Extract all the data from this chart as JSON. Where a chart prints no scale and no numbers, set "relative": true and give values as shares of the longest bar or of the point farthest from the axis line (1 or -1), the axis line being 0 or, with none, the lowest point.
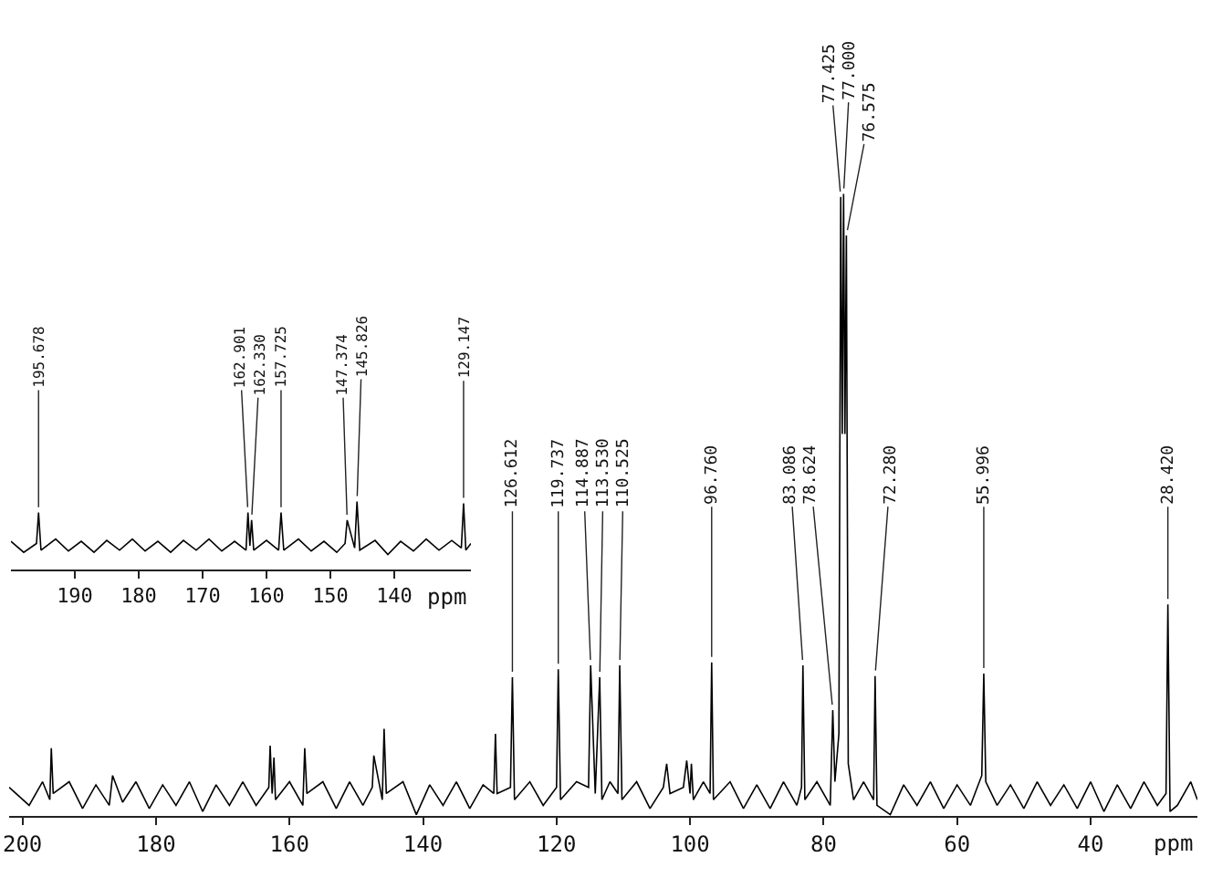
{
  "chart_data": [
    {
      "type": "line",
      "xlabel": "ppm",
      "relative": true,
      "color": "#000000",
      "xlim": [
        202,
        24
      ],
      "xticks": [
        200,
        180,
        160,
        140,
        120,
        100,
        80,
        60,
        40
      ],
      "x": [
        202,
        199,
        197,
        195.9,
        195.68,
        195.4,
        193,
        191,
        189,
        187,
        186.5,
        185,
        183,
        181,
        179,
        177,
        175,
        173,
        171,
        169,
        167,
        165,
        163.1,
        162.9,
        162.6,
        162.33,
        162.1,
        160,
        158,
        157.72,
        157.4,
        155,
        153,
        151,
        149,
        147.6,
        147.37,
        146.1,
        145.83,
        145.5,
        143,
        141,
        139,
        137,
        135,
        133,
        131,
        129.4,
        129.15,
        128.9,
        126.9,
        126.61,
        126.3,
        124,
        122,
        120,
        119.74,
        119.4,
        117,
        115.2,
        114.89,
        114.2,
        113.53,
        113.2,
        112,
        110.8,
        110.53,
        110.2,
        108,
        106,
        104,
        103.5,
        103,
        101,
        100.5,
        100,
        99.8,
        99.5,
        98,
        97,
        96.76,
        96.5,
        94,
        92,
        90,
        88,
        86,
        84,
        83.3,
        83.09,
        82.8,
        81,
        79,
        78.62,
        78.3,
        77.7,
        77.43,
        77.2,
        77.0,
        76.8,
        76.58,
        76.3,
        75.5,
        74,
        72.5,
        72.28,
        72,
        70,
        68,
        66,
        64,
        62,
        60,
        58,
        56.3,
        56.0,
        55.7,
        54,
        52,
        50,
        48,
        46,
        44,
        42,
        40,
        38,
        36,
        34,
        32,
        30,
        28.7,
        28.42,
        28.1,
        27,
        25,
        24
      ],
      "values": [
        0.046,
        0.017,
        0.055,
        0.026,
        0.109,
        0.036,
        0.055,
        0.012,
        0.05,
        0.017,
        0.065,
        0.022,
        0.055,
        0.012,
        0.05,
        0.017,
        0.055,
        0.007,
        0.05,
        0.017,
        0.055,
        0.017,
        0.046,
        0.113,
        0.036,
        0.094,
        0.026,
        0.055,
        0.017,
        0.109,
        0.036,
        0.055,
        0.012,
        0.055,
        0.017,
        0.046,
        0.097,
        0.026,
        0.14,
        0.036,
        0.055,
        0.002,
        0.05,
        0.017,
        0.055,
        0.012,
        0.05,
        0.036,
        0.132,
        0.036,
        0.046,
        0.223,
        0.026,
        0.055,
        0.017,
        0.046,
        0.236,
        0.026,
        0.055,
        0.046,
        0.242,
        0.036,
        0.223,
        0.026,
        0.055,
        0.036,
        0.242,
        0.026,
        0.055,
        0.012,
        0.046,
        0.084,
        0.036,
        0.046,
        0.089,
        0.036,
        0.084,
        0.026,
        0.055,
        0.036,
        0.247,
        0.026,
        0.055,
        0.012,
        0.05,
        0.012,
        0.055,
        0.017,
        0.046,
        0.242,
        0.026,
        0.055,
        0.017,
        0.17,
        0.055,
        0.132,
        0.995,
        0.614,
        1,
        0.614,
        0.933,
        0.084,
        0.026,
        0.055,
        0.026,
        0.225,
        0.017,
        0.002,
        0.05,
        0.017,
        0.055,
        0.012,
        0.05,
        0.017,
        0.065,
        0.229,
        0.055,
        0.017,
        0.05,
        0.012,
        0.055,
        0.017,
        0.05,
        0.012,
        0.055,
        0.007,
        0.05,
        0.012,
        0.055,
        0.017,
        0.036,
        0.34,
        0.007,
        0.017,
        0.055,
        0.026
      ],
      "annotations": [
        {
          "text": "126.612",
          "x": 126.61,
          "y": 0.223
        },
        {
          "text": "119.737",
          "x": 119.74,
          "y": 0.236
        },
        {
          "text": "114.887",
          "x": 114.89,
          "y": 0.242
        },
        {
          "text": "113.530",
          "x": 113.53,
          "y": 0.223
        },
        {
          "text": "110.525",
          "x": 110.53,
          "y": 0.242
        },
        {
          "text": "96.760",
          "x": 96.76,
          "y": 0.247
        },
        {
          "text": "83.086",
          "x": 83.09,
          "y": 0.242
        },
        {
          "text": "78.624",
          "x": 78.62,
          "y": 0.17
        },
        {
          "text": "77.425",
          "x": 77.43,
          "y": 0.995
        },
        {
          "text": "77.000",
          "x": 77.0,
          "y": 1
        },
        {
          "text": "76.575",
          "x": 76.58,
          "y": 0.933
        },
        {
          "text": "72.280",
          "x": 72.28,
          "y": 0.225
        },
        {
          "text": "55.996",
          "x": 56.0,
          "y": 0.229
        },
        {
          "text": "28.420",
          "x": 28.42,
          "y": 0.34
        }
      ]
    },
    {
      "type": "line",
      "xlabel": "ppm",
      "relative": true,
      "color": "#000000",
      "xlim": [
        200,
        128
      ],
      "xticks": [
        190,
        180,
        170,
        160,
        150,
        140
      ],
      "x": [
        200,
        198,
        196.0,
        195.68,
        195.3,
        193,
        191,
        189,
        187,
        185,
        183,
        181,
        179,
        177,
        175,
        173,
        171,
        169,
        167,
        165,
        163.2,
        162.9,
        162.6,
        162.33,
        162.0,
        160,
        158.1,
        157.72,
        157.3,
        155,
        153,
        151,
        149,
        147.7,
        147.37,
        146.2,
        145.83,
        145.4,
        143,
        141,
        139,
        137,
        135,
        133,
        131,
        129.5,
        129.15,
        128.8,
        128
      ],
      "values": [
        0.415,
        0.253,
        0.383,
        0.838,
        0.285,
        0.448,
        0.272,
        0.415,
        0.253,
        0.428,
        0.285,
        0.448,
        0.272,
        0.415,
        0.253,
        0.428,
        0.285,
        0.448,
        0.272,
        0.415,
        0.285,
        0.838,
        0.35,
        0.727,
        0.285,
        0.428,
        0.285,
        0.838,
        0.285,
        0.448,
        0.272,
        0.415,
        0.253,
        0.383,
        0.727,
        0.318,
        1,
        0.285,
        0.428,
        0.22,
        0.415,
        0.272,
        0.448,
        0.285,
        0.428,
        0.318,
        0.974,
        0.285,
        0.383
      ],
      "annotations": [
        {
          "text": "195.678",
          "x": 195.68,
          "y": 0.838
        },
        {
          "text": "162.901",
          "x": 162.9,
          "y": 0.838
        },
        {
          "text": "162.330",
          "x": 162.33,
          "y": 0.727
        },
        {
          "text": "157.725",
          "x": 157.72,
          "y": 0.838
        },
        {
          "text": "147.374",
          "x": 147.37,
          "y": 0.727
        },
        {
          "text": "145.826",
          "x": 145.83,
          "y": 1
        },
        {
          "text": "129.147",
          "x": 129.15,
          "y": 0.974
        }
      ]
    }
  ]
}
